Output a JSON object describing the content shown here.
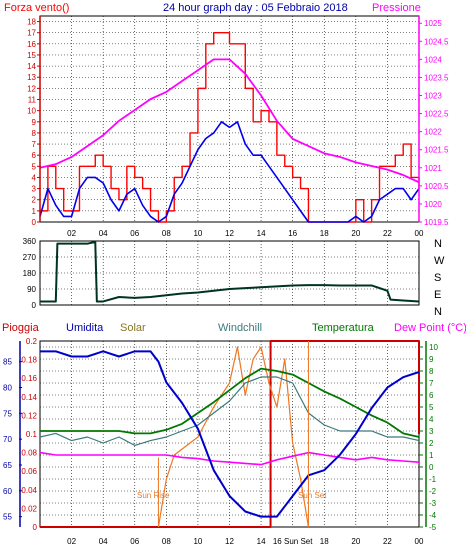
{
  "colors": {
    "wind": "#ff0000",
    "gust_avg": "#0000ee",
    "pressure": "#ff00ff",
    "direction": "#003322",
    "rain": "#cc0000",
    "humidity": "#0000cc",
    "solar": "#ee7722",
    "windchill": "#3a7a7a",
    "temperature": "#007700",
    "dewpoint": "#ff00ff",
    "title": "#0000aa",
    "grid": "#000000"
  },
  "chart_data": [
    {
      "type": "line",
      "panel": "wind-pressure",
      "title": "24 hour graph day : 05 Febbraio 2018",
      "left_label": "Forza vento()",
      "right_label": "Pressione",
      "x_range": [
        0,
        24
      ],
      "x_ticks": [
        "02",
        "04",
        "06",
        "08",
        "10",
        "12",
        "14",
        "16",
        "18",
        "20",
        "22",
        "00"
      ],
      "y_left_ticks": [
        "0",
        "1",
        "2",
        "3",
        "4",
        "5",
        "6",
        "7",
        "8",
        "9",
        "10",
        "11",
        "12",
        "13",
        "14",
        "15",
        "16",
        "17",
        "18"
      ],
      "y_left_range": [
        0,
        18.5
      ],
      "y_right_ticks": [
        "1019.5",
        "1020",
        "1020.5",
        "1021",
        "1021.5",
        "1022",
        "1022.5",
        "1023",
        "1023.5",
        "1024",
        "1024.5",
        "1025"
      ],
      "y_right_range": [
        1019.5,
        1025.2
      ],
      "series": [
        {
          "name": "gust",
          "x": [
            0,
            0.5,
            1,
            1.5,
            2,
            2.5,
            3,
            3.5,
            4,
            4.5,
            5,
            5.5,
            6,
            6.5,
            7,
            7.5,
            8,
            8.5,
            9,
            9.5,
            10,
            10.5,
            11,
            11.5,
            12,
            12.5,
            13,
            13.5,
            14,
            14.5,
            15,
            15.5,
            16,
            16.5,
            17,
            17.5,
            18,
            18.5,
            19,
            19.5,
            20,
            20.5,
            21,
            21.5,
            22,
            22.5,
            23,
            23.5,
            24
          ],
          "values": [
            1,
            5,
            3,
            1,
            1,
            5,
            5,
            6,
            5,
            3,
            2,
            5,
            4,
            3,
            1,
            0,
            1,
            4,
            5,
            8,
            12,
            16,
            17,
            17,
            16,
            16,
            12,
            9,
            10,
            9,
            6,
            5,
            4,
            3,
            0,
            0,
            0,
            0,
            0,
            0,
            2,
            0,
            2,
            5,
            5,
            6,
            7,
            4,
            3
          ]
        },
        {
          "name": "wind",
          "x": [
            0,
            0.5,
            1,
            1.5,
            2,
            2.5,
            3,
            3.5,
            4,
            4.5,
            5,
            5.5,
            6,
            6.5,
            7,
            7.5,
            8,
            8.5,
            9,
            9.5,
            10,
            10.5,
            11,
            11.5,
            12,
            12.5,
            13,
            13.5,
            14,
            14.5,
            15,
            15.5,
            16,
            16.5,
            17,
            17.5,
            18,
            18.5,
            19,
            19.5,
            20,
            20.5,
            21,
            21.5,
            22,
            22.5,
            23,
            23.5,
            24
          ],
          "values": [
            0.5,
            3,
            1.5,
            0.5,
            0.5,
            3,
            4,
            4,
            3.5,
            2,
            1,
            2.5,
            3,
            1.5,
            0.5,
            0,
            0.5,
            2.5,
            3.5,
            5,
            6.5,
            7.5,
            8,
            9,
            8.5,
            9,
            7,
            6,
            6,
            5,
            4,
            3,
            2,
            1,
            0,
            0,
            0,
            0,
            0,
            0,
            0.5,
            0,
            0.5,
            2,
            2.5,
            3,
            3,
            2,
            3
          ]
        },
        {
          "name": "pressure",
          "axis": "right",
          "x": [
            0,
            1,
            2,
            3,
            4,
            5,
            6,
            7,
            8,
            9,
            10,
            11,
            12,
            13,
            14,
            15,
            16,
            17,
            18,
            19,
            20,
            21,
            22,
            23,
            24
          ],
          "values": [
            1021.0,
            1021.1,
            1021.3,
            1021.6,
            1021.9,
            1022.3,
            1022.6,
            1022.9,
            1023.1,
            1023.4,
            1023.7,
            1024.0,
            1024.0,
            1023.6,
            1023.0,
            1022.3,
            1021.8,
            1021.6,
            1021.4,
            1021.3,
            1021.15,
            1021.05,
            1020.95,
            1020.8,
            1020.6
          ]
        }
      ]
    },
    {
      "type": "line",
      "panel": "wind-direction",
      "y_left_ticks": [
        "0",
        "90",
        "180",
        "270",
        "360"
      ],
      "y_left_range": [
        0,
        360
      ],
      "direction_labels": [
        "N",
        "W",
        "S",
        "E",
        "N"
      ],
      "x_range": [
        0,
        24
      ],
      "series": [
        {
          "name": "direction",
          "x": [
            0,
            1,
            1.1,
            2,
            3,
            3.5,
            3.6,
            4,
            5,
            6,
            7,
            8,
            9,
            10,
            11,
            12,
            13,
            14,
            15,
            16,
            17,
            18,
            19,
            20,
            21,
            22,
            22.2,
            23,
            24
          ],
          "values": [
            20,
            20,
            345,
            345,
            345,
            355,
            20,
            20,
            45,
            40,
            45,
            55,
            65,
            70,
            80,
            90,
            95,
            100,
            105,
            110,
            112,
            112,
            110,
            110,
            110,
            80,
            30,
            25,
            20
          ]
        }
      ]
    },
    {
      "type": "line",
      "panel": "rain-humidity-temperature",
      "legend": [
        "Pioggia",
        "Umidita",
        "Solar",
        "Windchill",
        "Temperatura",
        "Dew Point (°C)"
      ],
      "y_rain_ticks": [
        "0",
        "0.02",
        "0.04",
        "0.06",
        "0.08",
        "0.1",
        "0.12",
        "0.14",
        "0.16",
        "0.18",
        "0.2"
      ],
      "y_rain_range": [
        0,
        0.2
      ],
      "y_hum_ticks": [
        "55",
        "60",
        "65",
        "70",
        "75",
        "80",
        "85"
      ],
      "y_hum_range": [
        53,
        89
      ],
      "y_temp_ticks": [
        "-5",
        "-4",
        "-3",
        "-2",
        "-1",
        "0",
        "1",
        "2",
        "3",
        "4",
        "5",
        "6",
        "7",
        "8",
        "9",
        "10"
      ],
      "y_temp_range": [
        -5,
        10.5
      ],
      "x_ticks": [
        "02",
        "04",
        "06",
        "08",
        "10",
        "12",
        "14",
        "16",
        "18",
        "20",
        "22",
        "00"
      ],
      "annotations": [
        "Sun Rise",
        "Sun Set",
        "16 Sun Set"
      ],
      "series": [
        {
          "name": "rain",
          "x": [
            0,
            14.6,
            14.6,
            24,
            24
          ],
          "values": [
            0,
            0,
            0.2,
            0.2,
            0.1
          ]
        },
        {
          "name": "humidity",
          "x": [
            0,
            1,
            2,
            3,
            4,
            5,
            6,
            7,
            7.5,
            8,
            9,
            10,
            11,
            12,
            13,
            14,
            15,
            16,
            17,
            18,
            19,
            20,
            21,
            22,
            23,
            24
          ],
          "values": [
            87,
            87,
            86,
            86,
            87,
            86,
            87,
            87,
            85,
            81,
            77,
            72,
            64,
            59,
            56,
            55,
            55,
            59,
            63,
            64,
            67,
            71,
            76,
            80,
            82,
            83
          ]
        },
        {
          "name": "windchill",
          "x": [
            0,
            1,
            2,
            3,
            4,
            5,
            6,
            7,
            8,
            9,
            10,
            11,
            12,
            13,
            14,
            15,
            16,
            17,
            18,
            19,
            20,
            21,
            22,
            23,
            24
          ],
          "values": [
            2.5,
            2.8,
            2.2,
            2.5,
            2.0,
            2.5,
            1.8,
            2.2,
            2.5,
            3.0,
            3.5,
            4.5,
            5.5,
            7.0,
            7.5,
            7.5,
            7.0,
            4.5,
            3.5,
            3.0,
            3.0,
            3.0,
            2.5,
            2.5,
            2.2
          ]
        },
        {
          "name": "temperature",
          "x": [
            0,
            1,
            2,
            3,
            4,
            5,
            6,
            7,
            8,
            9,
            10,
            11,
            12,
            13,
            14,
            15,
            16,
            17,
            18,
            19,
            20,
            21,
            22,
            23,
            24
          ],
          "values": [
            3.0,
            3.0,
            3.0,
            3.0,
            3.0,
            3.0,
            2.8,
            2.8,
            3.1,
            3.6,
            4.5,
            5.4,
            6.4,
            7.4,
            8.2,
            8.0,
            7.7,
            7.0,
            6.3,
            5.7,
            5.0,
            4.3,
            3.7,
            2.8,
            2.5
          ]
        },
        {
          "name": "dewpoint",
          "x": [
            0,
            1,
            2,
            3,
            4,
            5,
            6,
            7,
            8,
            9,
            10,
            11,
            12,
            13,
            14,
            15,
            16,
            17,
            18,
            19,
            20,
            21,
            22,
            23,
            24
          ],
          "values": [
            1.2,
            1.0,
            1.0,
            1.0,
            1.0,
            1.0,
            1.0,
            1.0,
            1.0,
            0.8,
            0.7,
            0.5,
            0.4,
            0.3,
            0.2,
            0.6,
            0.9,
            1.2,
            1.0,
            0.8,
            0.6,
            0.8,
            0.6,
            0.5,
            0.4
          ]
        },
        {
          "name": "solar",
          "x": [
            7.5,
            8,
            8.5,
            9,
            10,
            11,
            12,
            12.5,
            13,
            13.5,
            14,
            14.5,
            15,
            15.5,
            16,
            16.5,
            17
          ],
          "values": [
            -5,
            -1,
            1,
            1.5,
            2.5,
            5,
            7,
            10,
            6,
            9,
            10,
            7,
            5,
            9,
            2,
            -1,
            -5
          ]
        }
      ]
    }
  ]
}
